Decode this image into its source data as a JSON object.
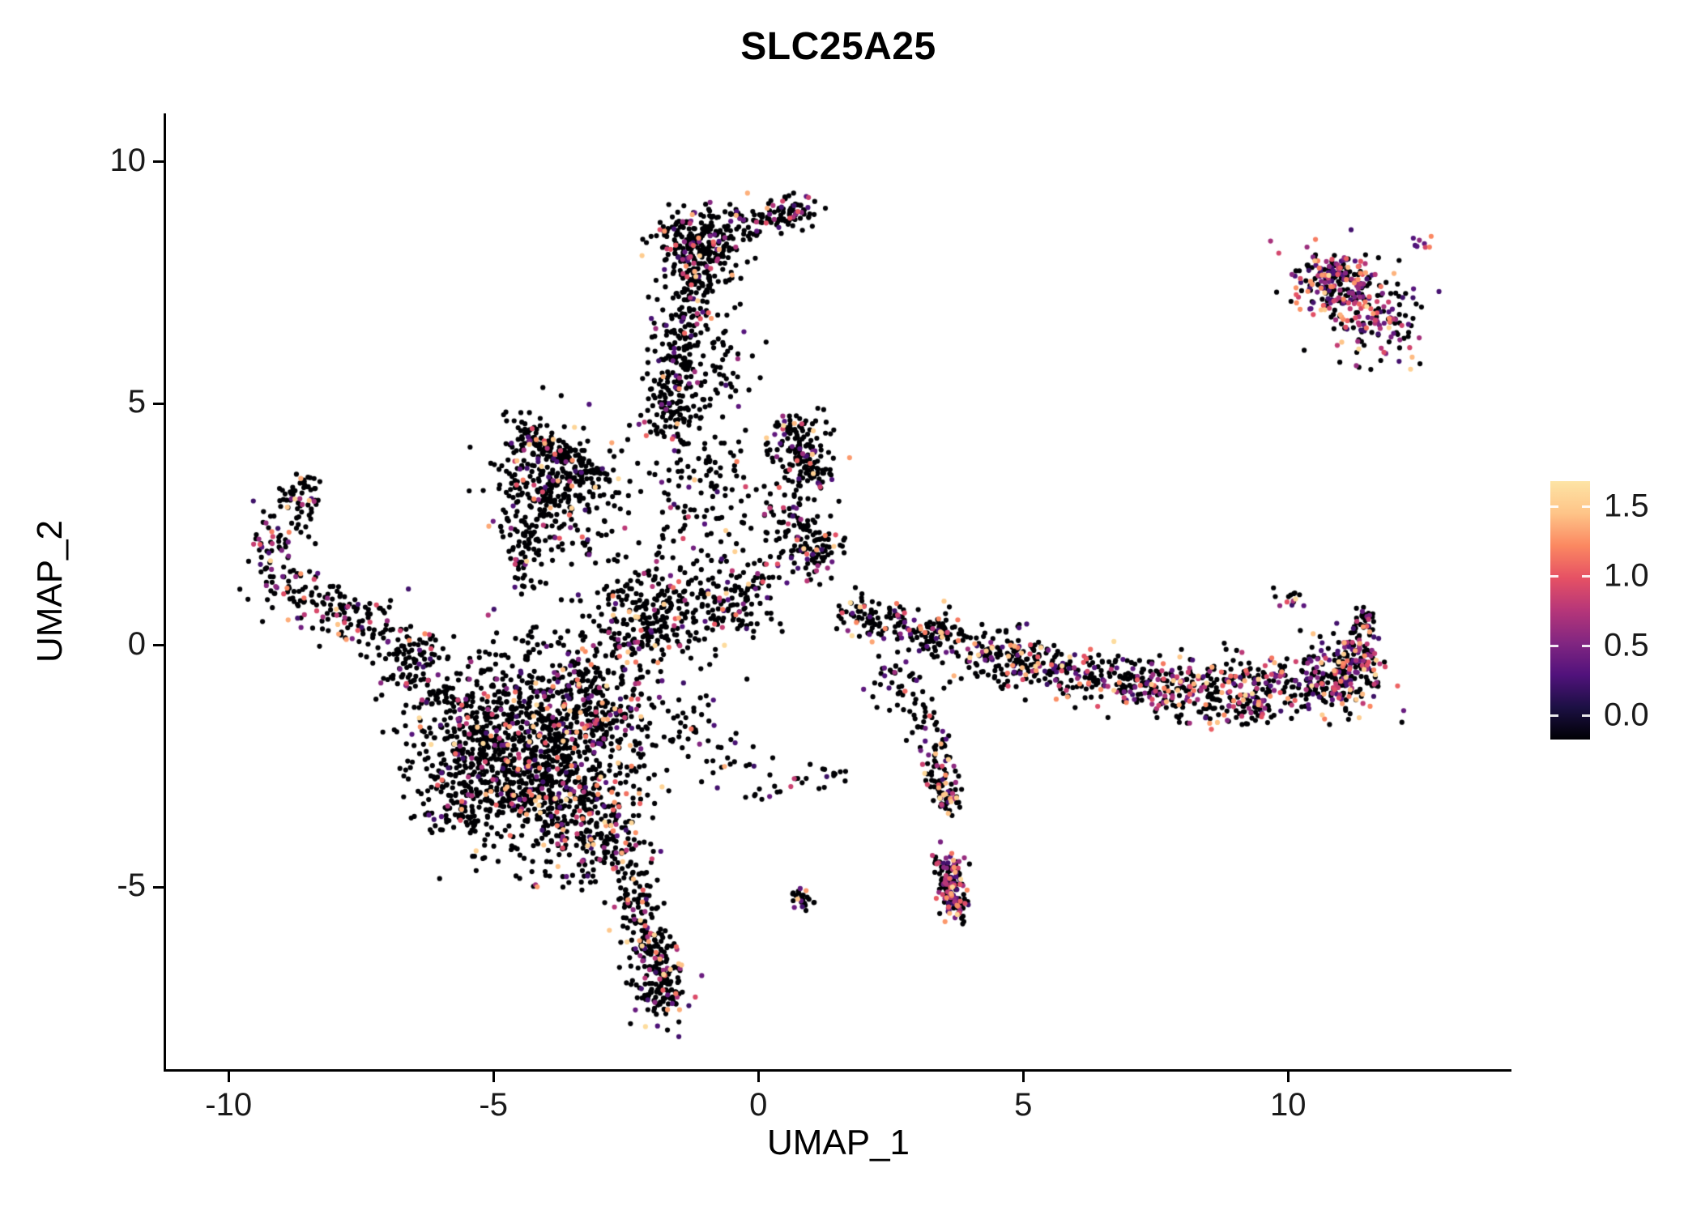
{
  "title": "SLC25A25",
  "chart_data": {
    "type": "scatter",
    "title": "SLC25A25",
    "xlabel": "UMAP_1",
    "ylabel": "UMAP_2",
    "x_domain": [
      -11.18,
      14.2
    ],
    "y_domain": [
      -8.76,
      11.0
    ],
    "x_ticks": [
      {
        "v": -10,
        "label": "-10"
      },
      {
        "v": -5,
        "label": "-5"
      },
      {
        "v": 0,
        "label": "0"
      },
      {
        "v": 5,
        "label": "5"
      },
      {
        "v": 10,
        "label": "10"
      }
    ],
    "y_ticks": [
      {
        "v": 10,
        "label": "10"
      },
      {
        "v": 5,
        "label": "5"
      },
      {
        "v": 0,
        "label": "0"
      },
      {
        "v": -5,
        "label": "-5"
      }
    ],
    "grid": false,
    "legend": {
      "position": "right",
      "labels": [
        {
          "v": 1.5,
          "label": "1.5"
        },
        {
          "v": 1.0,
          "label": "1.0"
        },
        {
          "v": 0.5,
          "label": "0.5"
        },
        {
          "v": 0.0,
          "label": "0.0"
        }
      ],
      "domain": [
        -0.172,
        1.68
      ]
    },
    "colormap": {
      "name": "magma",
      "stops": [
        "#000004",
        "#1c1044",
        "#51127c",
        "#822681",
        "#b63679",
        "#e65164",
        "#fb8861",
        "#fec488",
        "#fde4a5"
      ],
      "value_range": [
        0,
        1.75
      ]
    },
    "point_radius_px": 3.1,
    "seed": 42,
    "clusters": [
      {
        "t": "g",
        "cx": -4.5,
        "cy": -1.6,
        "sx": 1.0,
        "sy": 0.85,
        "n": 620,
        "e": 0.18
      },
      {
        "t": "g",
        "cx": -3.8,
        "cy": -2.9,
        "sx": 0.85,
        "sy": 0.8,
        "n": 520,
        "e": 0.18
      },
      {
        "t": "g",
        "cx": -5.2,
        "cy": -2.9,
        "sx": 0.65,
        "sy": 0.6,
        "n": 240,
        "e": 0.15
      },
      {
        "t": "g",
        "cx": -3.1,
        "cy": -1.3,
        "sx": 0.6,
        "sy": 0.6,
        "n": 240,
        "e": 0.18
      },
      {
        "t": "g",
        "cx": -2.9,
        "cy": -4.1,
        "sx": 0.45,
        "sy": 0.55,
        "n": 150,
        "e": 0.2
      },
      {
        "t": "l",
        "x1": -7.0,
        "y1": -0.3,
        "x2": -5.6,
        "y2": -1.4,
        "w": 0.3,
        "n": 90,
        "e": 0.15
      },
      {
        "t": "l",
        "x1": -2.5,
        "y1": -4.7,
        "x2": -2.0,
        "y2": -6.3,
        "w": 0.18,
        "n": 110,
        "e": 0.25
      },
      {
        "t": "g",
        "cx": -1.9,
        "cy": -6.9,
        "sx": 0.27,
        "sy": 0.45,
        "n": 170,
        "e": 0.3
      },
      {
        "t": "l",
        "x1": -9.4,
        "y1": 1.5,
        "x2": -7.2,
        "y2": 0.4,
        "w": 0.28,
        "n": 150,
        "e": 0.25
      },
      {
        "t": "l",
        "x1": -9.3,
        "y1": 1.9,
        "x2": -8.5,
        "y2": 3.1,
        "w": 0.22,
        "n": 70,
        "e": 0.25
      },
      {
        "t": "g",
        "cx": -8.6,
        "cy": 3.2,
        "sx": 0.18,
        "sy": 0.18,
        "n": 30,
        "e": 0.25
      },
      {
        "t": "l",
        "x1": -7.2,
        "y1": 0.3,
        "x2": -6.1,
        "y2": -0.3,
        "w": 0.3,
        "n": 60,
        "e": 0.15
      },
      {
        "t": "l",
        "x1": -4.5,
        "y1": 4.45,
        "x2": -3.0,
        "y2": 3.45,
        "w": 0.14,
        "n": 130,
        "e": 0.12
      },
      {
        "t": "g",
        "cx": -4.0,
        "cy": 3.3,
        "sx": 0.5,
        "sy": 0.7,
        "n": 260,
        "e": 0.12
      },
      {
        "t": "l",
        "x1": -4.55,
        "y1": 2.9,
        "x2": -4.35,
        "y2": 1.2,
        "w": 0.18,
        "n": 60,
        "e": 0.12
      },
      {
        "t": "g",
        "cx": -3.0,
        "cy": 2.6,
        "sx": 0.5,
        "sy": 0.8,
        "n": 90,
        "e": 0.12
      },
      {
        "t": "l",
        "x1": -1.65,
        "y1": 4.5,
        "x2": -1.15,
        "y2": 7.9,
        "w": 0.3,
        "n": 330,
        "e": 0.15
      },
      {
        "t": "g",
        "cx": -1.1,
        "cy": 8.3,
        "sx": 0.42,
        "sy": 0.33,
        "n": 230,
        "e": 0.18
      },
      {
        "t": "l",
        "x1": -0.8,
        "y1": 8.7,
        "x2": 0.8,
        "y2": 8.95,
        "w": 0.2,
        "n": 80,
        "e": 0.2
      },
      {
        "t": "g",
        "cx": 0.65,
        "cy": 9.0,
        "sx": 0.22,
        "sy": 0.18,
        "n": 50,
        "e": 0.2
      },
      {
        "t": "g",
        "cx": -1.1,
        "cy": 3.2,
        "sx": 0.55,
        "sy": 0.9,
        "n": 130,
        "e": 0.12
      },
      {
        "t": "g",
        "cx": 0.7,
        "cy": 4.25,
        "sx": 0.28,
        "sy": 0.28,
        "n": 95,
        "e": 0.25
      },
      {
        "t": "g",
        "cx": 0.95,
        "cy": 3.6,
        "sx": 0.28,
        "sy": 0.22,
        "n": 70,
        "e": 0.25
      },
      {
        "t": "g",
        "cx": 0.6,
        "cy": 2.7,
        "sx": 0.4,
        "sy": 0.35,
        "n": 60,
        "e": 0.15
      },
      {
        "t": "g",
        "cx": 1.05,
        "cy": 1.95,
        "sx": 0.3,
        "sy": 0.28,
        "n": 90,
        "e": 0.2
      },
      {
        "t": "l",
        "x1": 0.3,
        "y1": 1.5,
        "x2": -0.6,
        "y2": 0.7,
        "w": 0.3,
        "n": 70,
        "e": 0.15
      },
      {
        "t": "g",
        "cx": -1.5,
        "cy": 0.75,
        "sx": 0.75,
        "sy": 0.45,
        "n": 210,
        "e": 0.15
      },
      {
        "t": "g",
        "cx": 2.05,
        "cy": 0.6,
        "sx": 0.22,
        "sy": 0.22,
        "n": 55,
        "e": 0.2
      },
      {
        "t": "l",
        "x1": 2.3,
        "y1": 0.55,
        "x2": 3.4,
        "y2": 0.15,
        "w": 0.2,
        "n": 60,
        "e": 0.2
      },
      {
        "t": "g",
        "cx": 3.35,
        "cy": 0.3,
        "sx": 0.25,
        "sy": 0.25,
        "n": 60,
        "e": 0.2
      },
      {
        "t": "l",
        "x1": 3.6,
        "y1": 0.1,
        "x2": 4.5,
        "y2": -0.2,
        "w": 0.22,
        "n": 50,
        "e": 0.2
      },
      {
        "t": "g",
        "cx": 4.85,
        "cy": -0.3,
        "sx": 0.38,
        "sy": 0.3,
        "n": 120,
        "e": 0.25
      },
      {
        "t": "l",
        "x1": 5.3,
        "y1": -0.45,
        "x2": 7.6,
        "y2": -0.85,
        "w": 0.28,
        "n": 230,
        "e": 0.3
      },
      {
        "t": "l",
        "x1": 7.6,
        "y1": -0.9,
        "x2": 10.9,
        "y2": -0.8,
        "w": 0.33,
        "n": 360,
        "e": 0.35
      },
      {
        "t": "g",
        "cx": 11.2,
        "cy": -0.6,
        "sx": 0.33,
        "sy": 0.38,
        "n": 190,
        "e": 0.45
      },
      {
        "t": "l",
        "x1": 11.3,
        "y1": -0.2,
        "x2": 11.45,
        "y2": 0.8,
        "w": 0.12,
        "n": 50,
        "e": 0.35
      },
      {
        "t": "g",
        "cx": 10.05,
        "cy": 1.0,
        "sx": 0.15,
        "sy": 0.12,
        "n": 15,
        "e": 0.4
      },
      {
        "t": "g",
        "cx": 8.8,
        "cy": -1.35,
        "sx": 0.45,
        "sy": 0.2,
        "n": 40,
        "e": 0.25
      },
      {
        "t": "l",
        "x1": 2.5,
        "y1": -0.3,
        "x2": 3.3,
        "y2": -2.1,
        "w": 0.25,
        "n": 70,
        "e": 0.2
      },
      {
        "t": "g",
        "cx": 3.4,
        "cy": -2.5,
        "sx": 0.18,
        "sy": 0.3,
        "n": 45,
        "e": 0.3
      },
      {
        "t": "l",
        "x1": 3.5,
        "y1": -2.9,
        "x2": 3.6,
        "y2": -3.4,
        "w": 0.12,
        "n": 50,
        "e": 0.3
      },
      {
        "t": "l",
        "x1": 3.55,
        "y1": -4.35,
        "x2": 3.7,
        "y2": -5.65,
        "w": 0.13,
        "n": 150,
        "e": 0.5
      },
      {
        "t": "g",
        "cx": 0.82,
        "cy": -5.2,
        "sx": 0.12,
        "sy": 0.12,
        "n": 25,
        "e": 0.2
      },
      {
        "t": "l",
        "x1": -0.3,
        "y1": -3.0,
        "x2": 1.6,
        "y2": -2.65,
        "w": 0.18,
        "n": 28,
        "e": 0.3
      },
      {
        "t": "l",
        "x1": 10.5,
        "y1": 7.85,
        "x2": 11.95,
        "y2": 6.35,
        "w": 0.4,
        "n": 280,
        "e": 0.55
      },
      {
        "t": "g",
        "cx": 10.9,
        "cy": 7.6,
        "sx": 0.3,
        "sy": 0.22,
        "n": 80,
        "e": 0.55
      },
      {
        "t": "g",
        "cx": 12.5,
        "cy": 8.3,
        "sx": 0.12,
        "sy": 0.1,
        "n": 8,
        "e": 0.6
      },
      {
        "t": "l",
        "x1": -1.8,
        "y1": -1.0,
        "x2": -0.3,
        "y2": -2.9,
        "w": 0.35,
        "n": 60,
        "e": 0.15
      },
      {
        "t": "g",
        "cx": -2.3,
        "cy": 0.3,
        "sx": 0.5,
        "sy": 0.4,
        "n": 120,
        "e": 0.15
      },
      {
        "t": "g",
        "cx": -0.6,
        "cy": 5.6,
        "sx": 0.35,
        "sy": 0.5,
        "n": 40,
        "e": 0.15
      }
    ]
  }
}
